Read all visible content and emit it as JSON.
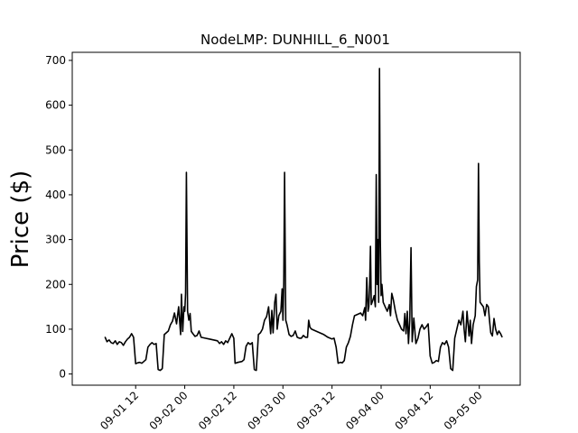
{
  "chart_data": {
    "type": "line",
    "title": "NodeLMP: DUNHILL_6_N001",
    "xlabel": "",
    "ylabel": "Price ($)",
    "x_axis": "datetime (hours from 09-01 00)",
    "xlim": [
      -3.5,
      106
    ],
    "ylim": [
      -25,
      718
    ],
    "grid": false,
    "y_ticks": [
      0,
      100,
      200,
      300,
      400,
      500,
      600,
      700
    ],
    "x_ticks": [
      {
        "x": 12,
        "label": "09-01 12"
      },
      {
        "x": 24,
        "label": "09-02 00"
      },
      {
        "x": 36,
        "label": "09-02 12"
      },
      {
        "x": 48,
        "label": "09-03 00"
      },
      {
        "x": 60,
        "label": "09-03 12"
      },
      {
        "x": 72,
        "label": "09-04 00"
      },
      {
        "x": 84,
        "label": "09-04 12"
      },
      {
        "x": 96,
        "label": "09-05 00"
      }
    ],
    "x_tick_labels_shown": [
      "09-01 12",
      "09-02 00",
      "09-02 12",
      "09-03 00",
      "09-03 12",
      "09-04 00",
      "09-04 12",
      "09-05 00"
    ],
    "series": [
      {
        "color": "#000000",
        "points": [
          [
            4.5,
            83
          ],
          [
            5,
            72
          ],
          [
            5.5,
            76
          ],
          [
            6,
            70
          ],
          [
            6.5,
            68
          ],
          [
            7,
            74
          ],
          [
            7.5,
            66
          ],
          [
            8,
            72
          ],
          [
            8.5,
            70
          ],
          [
            9,
            64
          ],
          [
            9.5,
            72
          ],
          [
            10,
            78
          ],
          [
            10.5,
            82
          ],
          [
            11,
            90
          ],
          [
            11.5,
            82
          ],
          [
            12,
            23
          ],
          [
            12.5,
            25
          ],
          [
            13,
            26
          ],
          [
            13.5,
            24
          ],
          [
            14,
            28
          ],
          [
            14.5,
            32
          ],
          [
            15,
            60
          ],
          [
            15.5,
            66
          ],
          [
            16,
            70
          ],
          [
            16.5,
            66
          ],
          [
            17,
            68
          ],
          [
            17.5,
            10
          ],
          [
            18,
            8
          ],
          [
            18.5,
            12
          ],
          [
            19,
            88
          ],
          [
            19.5,
            92
          ],
          [
            20,
            96
          ],
          [
            20.5,
            110
          ],
          [
            21,
            118
          ],
          [
            21.5,
            136
          ],
          [
            22,
            112
          ],
          [
            22.5,
            150
          ],
          [
            23,
            88
          ],
          [
            23.2,
            178
          ],
          [
            23.5,
            95
          ],
          [
            23.8,
            150
          ],
          [
            24,
            140
          ],
          [
            24.2,
            180
          ],
          [
            24.4,
            450
          ],
          [
            24.7,
            140
          ],
          [
            25,
            120
          ],
          [
            25.3,
            135
          ],
          [
            25.6,
            95
          ],
          [
            26,
            90
          ],
          [
            26.5,
            84
          ],
          [
            27,
            86
          ],
          [
            27.5,
            96
          ],
          [
            28,
            82
          ],
          [
            29,
            80
          ],
          [
            30,
            78
          ],
          [
            31,
            76
          ],
          [
            32,
            74
          ],
          [
            32.5,
            68
          ],
          [
            33,
            72
          ],
          [
            33.5,
            66
          ],
          [
            34,
            74
          ],
          [
            34.5,
            70
          ],
          [
            35,
            80
          ],
          [
            35.5,
            90
          ],
          [
            36,
            80
          ],
          [
            36.3,
            24
          ],
          [
            37,
            26
          ],
          [
            38,
            28
          ],
          [
            38.5,
            32
          ],
          [
            39,
            62
          ],
          [
            39.5,
            70
          ],
          [
            40,
            66
          ],
          [
            40.5,
            70
          ],
          [
            41,
            10
          ],
          [
            41.5,
            8
          ],
          [
            42,
            88
          ],
          [
            42.5,
            92
          ],
          [
            43,
            100
          ],
          [
            43.5,
            120
          ],
          [
            44,
            128
          ],
          [
            44.5,
            150
          ],
          [
            45,
            90
          ],
          [
            45.3,
            142
          ],
          [
            45.6,
            92
          ],
          [
            46,
            160
          ],
          [
            46.3,
            178
          ],
          [
            46.6,
            100
          ],
          [
            47,
            130
          ],
          [
            47.5,
            140
          ],
          [
            47.8,
            190
          ],
          [
            48,
            120
          ],
          [
            48.2,
            200
          ],
          [
            48.4,
            450
          ],
          [
            48.7,
            120
          ],
          [
            49,
            110
          ],
          [
            49.5,
            88
          ],
          [
            50,
            84
          ],
          [
            50.5,
            86
          ],
          [
            51,
            96
          ],
          [
            51.5,
            82
          ],
          [
            52,
            80
          ],
          [
            52.5,
            80
          ],
          [
            53,
            86
          ],
          [
            53.5,
            82
          ],
          [
            54,
            82
          ],
          [
            54.3,
            120
          ],
          [
            54.6,
            104
          ],
          [
            55,
            100
          ],
          [
            56,
            96
          ],
          [
            57,
            92
          ],
          [
            58,
            88
          ],
          [
            59,
            82
          ],
          [
            60,
            78
          ],
          [
            60.5,
            80
          ],
          [
            61,
            60
          ],
          [
            61.5,
            24
          ],
          [
            62,
            26
          ],
          [
            62.5,
            25
          ],
          [
            63,
            30
          ],
          [
            63.5,
            60
          ],
          [
            64,
            70
          ],
          [
            64.5,
            84
          ],
          [
            65,
            110
          ],
          [
            65.5,
            130
          ],
          [
            66,
            132
          ],
          [
            67,
            136
          ],
          [
            67.5,
            130
          ],
          [
            68,
            148
          ],
          [
            68.2,
            120
          ],
          [
            68.5,
            215
          ],
          [
            68.8,
            140
          ],
          [
            69,
            150
          ],
          [
            69.2,
            200
          ],
          [
            69.4,
            285
          ],
          [
            69.6,
            155
          ],
          [
            70,
            165
          ],
          [
            70.3,
            175
          ],
          [
            70.6,
            150
          ],
          [
            70.8,
            445
          ],
          [
            71,
            200
          ],
          [
            71.2,
            300
          ],
          [
            71.4,
            160
          ],
          [
            71.6,
            682
          ],
          [
            71.8,
            300
          ],
          [
            72,
            175
          ],
          [
            72.2,
            200
          ],
          [
            72.5,
            160
          ],
          [
            73,
            150
          ],
          [
            73.5,
            140
          ],
          [
            74,
            155
          ],
          [
            74.3,
            130
          ],
          [
            74.6,
            180
          ],
          [
            75,
            165
          ],
          [
            75.5,
            140
          ],
          [
            76,
            120
          ],
          [
            76.5,
            110
          ],
          [
            77,
            100
          ],
          [
            77.5,
            96
          ],
          [
            77.8,
            135
          ],
          [
            78.1,
            90
          ],
          [
            78.4,
            140
          ],
          [
            78.7,
            68
          ],
          [
            79,
            120
          ],
          [
            79.3,
            282
          ],
          [
            79.6,
            72
          ],
          [
            80,
            125
          ],
          [
            80.5,
            68
          ],
          [
            81,
            80
          ],
          [
            81.5,
            100
          ],
          [
            82,
            110
          ],
          [
            82.5,
            100
          ],
          [
            83,
            105
          ],
          [
            83.5,
            112
          ],
          [
            84,
            40
          ],
          [
            84.5,
            24
          ],
          [
            85,
            26
          ],
          [
            85.5,
            30
          ],
          [
            86,
            28
          ],
          [
            86.5,
            60
          ],
          [
            87,
            70
          ],
          [
            87.5,
            66
          ],
          [
            88,
            74
          ],
          [
            88.5,
            60
          ],
          [
            89,
            12
          ],
          [
            89.5,
            8
          ],
          [
            90,
            80
          ],
          [
            90.5,
            100
          ],
          [
            91,
            120
          ],
          [
            91.5,
            110
          ],
          [
            92,
            140
          ],
          [
            92.3,
            100
          ],
          [
            92.6,
            72
          ],
          [
            93,
            140
          ],
          [
            93.5,
            85
          ],
          [
            93.8,
            120
          ],
          [
            94.1,
            68
          ],
          [
            94.5,
            110
          ],
          [
            95,
            130
          ],
          [
            95.3,
            195
          ],
          [
            95.6,
            210
          ],
          [
            95.8,
            470
          ],
          [
            96,
            250
          ],
          [
            96.2,
            160
          ],
          [
            96.6,
            155
          ],
          [
            97,
            150
          ],
          [
            97.4,
            130
          ],
          [
            97.8,
            155
          ],
          [
            98.2,
            150
          ],
          [
            98.5,
            120
          ],
          [
            98.8,
            92
          ],
          [
            99.2,
            85
          ],
          [
            99.6,
            124
          ],
          [
            100,
            100
          ],
          [
            100.4,
            88
          ],
          [
            100.8,
            96
          ],
          [
            101.2,
            90
          ],
          [
            101.6,
            82
          ]
        ]
      }
    ]
  }
}
